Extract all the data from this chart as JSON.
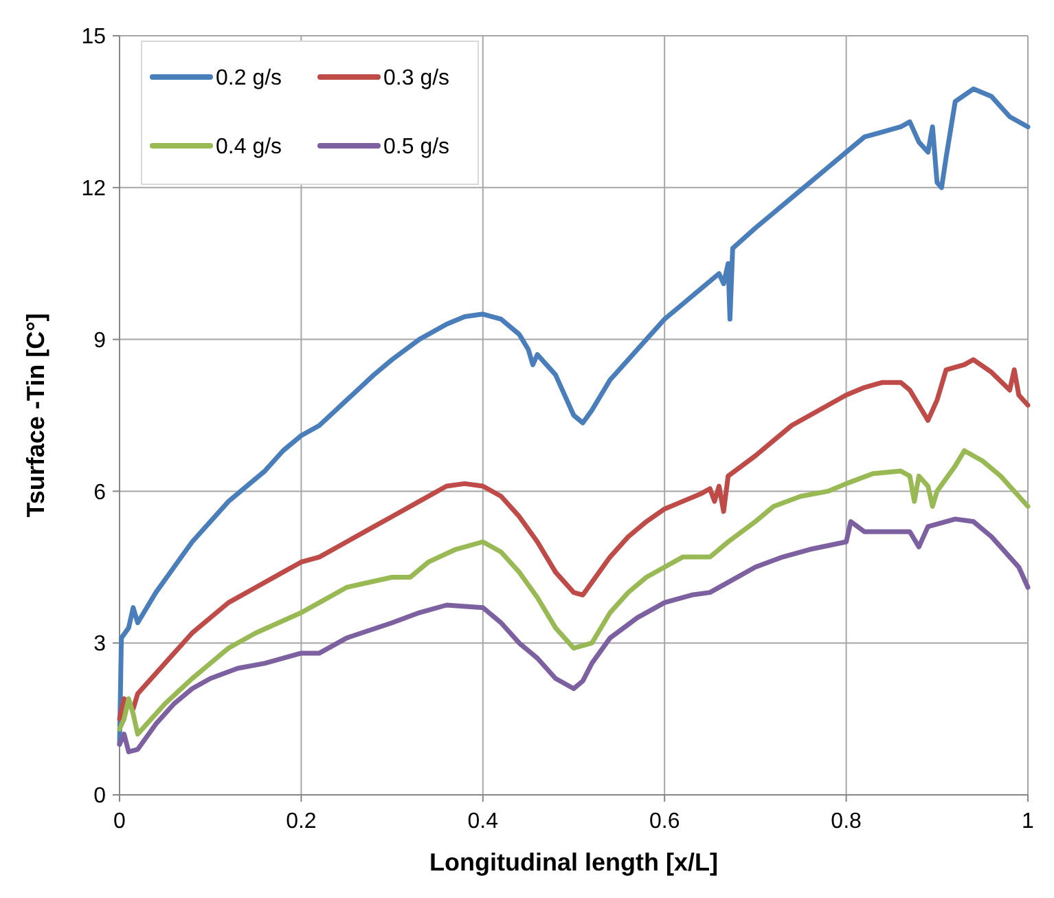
{
  "chart_data": {
    "type": "line",
    "xlabel": "Longitudinal length [x/L]",
    "ylabel": "Tsurface -Tin [C°]",
    "xlim": [
      0,
      1
    ],
    "xticks": [
      0,
      0.2,
      0.4,
      0.6,
      0.8,
      1
    ],
    "ylim": [
      0,
      15
    ],
    "yticks": [
      0,
      3,
      6,
      9,
      12,
      15
    ],
    "grid": true,
    "legend": "top left",
    "marker": "none",
    "line_style": "solid",
    "series": [
      {
        "name": "0.2 g/s",
        "color": "#4a7ebb",
        "x": [
          0,
          0.002,
          0.01,
          0.015,
          0.02,
          0.04,
          0.06,
          0.08,
          0.1,
          0.12,
          0.14,
          0.16,
          0.18,
          0.2,
          0.22,
          0.25,
          0.28,
          0.3,
          0.33,
          0.36,
          0.38,
          0.4,
          0.42,
          0.44,
          0.45,
          0.455,
          0.46,
          0.48,
          0.49,
          0.5,
          0.51,
          0.52,
          0.54,
          0.56,
          0.58,
          0.6,
          0.62,
          0.64,
          0.66,
          0.665,
          0.67,
          0.672,
          0.675,
          0.7,
          0.72,
          0.74,
          0.76,
          0.78,
          0.8,
          0.82,
          0.84,
          0.86,
          0.87,
          0.88,
          0.89,
          0.895,
          0.9,
          0.905,
          0.91,
          0.92,
          0.94,
          0.96,
          0.98,
          1
        ],
        "values": [
          1.0,
          3.1,
          3.3,
          3.7,
          3.4,
          4.0,
          4.5,
          5.0,
          5.4,
          5.8,
          6.1,
          6.4,
          6.8,
          7.1,
          7.3,
          7.8,
          8.3,
          8.6,
          9.0,
          9.3,
          9.45,
          9.5,
          9.4,
          9.1,
          8.8,
          8.5,
          8.7,
          8.3,
          7.9,
          7.5,
          7.35,
          7.6,
          8.2,
          8.6,
          9.0,
          9.4,
          9.7,
          10.0,
          10.3,
          10.1,
          10.5,
          9.4,
          10.8,
          11.2,
          11.5,
          11.8,
          12.1,
          12.4,
          12.7,
          13.0,
          13.1,
          13.2,
          13.3,
          12.9,
          12.7,
          13.2,
          12.1,
          12.0,
          12.6,
          13.7,
          13.95,
          13.8,
          13.4,
          13.2
        ]
      },
      {
        "name": "0.3 g/s",
        "color": "#be4b48",
        "x": [
          0,
          0.005,
          0.01,
          0.015,
          0.02,
          0.04,
          0.06,
          0.08,
          0.1,
          0.12,
          0.15,
          0.18,
          0.2,
          0.22,
          0.25,
          0.28,
          0.3,
          0.33,
          0.36,
          0.38,
          0.4,
          0.42,
          0.44,
          0.46,
          0.48,
          0.5,
          0.51,
          0.52,
          0.54,
          0.56,
          0.58,
          0.6,
          0.62,
          0.64,
          0.65,
          0.655,
          0.66,
          0.665,
          0.67,
          0.7,
          0.72,
          0.74,
          0.76,
          0.78,
          0.8,
          0.82,
          0.84,
          0.86,
          0.87,
          0.88,
          0.89,
          0.9,
          0.91,
          0.93,
          0.94,
          0.96,
          0.98,
          0.985,
          0.99,
          1
        ],
        "values": [
          1.5,
          1.9,
          1.8,
          1.7,
          2.0,
          2.4,
          2.8,
          3.2,
          3.5,
          3.8,
          4.1,
          4.4,
          4.6,
          4.7,
          5.0,
          5.3,
          5.5,
          5.8,
          6.1,
          6.15,
          6.1,
          5.9,
          5.5,
          5.0,
          4.4,
          4.0,
          3.95,
          4.2,
          4.7,
          5.1,
          5.4,
          5.65,
          5.8,
          5.95,
          6.05,
          5.8,
          6.1,
          5.6,
          6.3,
          6.7,
          7.0,
          7.3,
          7.5,
          7.7,
          7.9,
          8.05,
          8.15,
          8.15,
          8.0,
          7.7,
          7.4,
          7.8,
          8.4,
          8.5,
          8.6,
          8.35,
          8.0,
          8.4,
          7.9,
          7.7
        ]
      },
      {
        "name": "0.4 g/s",
        "color": "#98b954",
        "x": [
          0,
          0.005,
          0.01,
          0.015,
          0.02,
          0.03,
          0.05,
          0.08,
          0.1,
          0.12,
          0.15,
          0.2,
          0.22,
          0.25,
          0.3,
          0.32,
          0.34,
          0.37,
          0.4,
          0.42,
          0.44,
          0.46,
          0.48,
          0.5,
          0.52,
          0.54,
          0.56,
          0.58,
          0.6,
          0.62,
          0.65,
          0.67,
          0.7,
          0.72,
          0.75,
          0.78,
          0.8,
          0.83,
          0.86,
          0.87,
          0.875,
          0.88,
          0.89,
          0.895,
          0.9,
          0.92,
          0.93,
          0.95,
          0.97,
          0.99,
          1
        ],
        "values": [
          1.3,
          1.5,
          1.9,
          1.6,
          1.2,
          1.4,
          1.8,
          2.3,
          2.6,
          2.9,
          3.2,
          3.6,
          3.8,
          4.1,
          4.3,
          4.3,
          4.6,
          4.85,
          5.0,
          4.8,
          4.4,
          3.9,
          3.3,
          2.9,
          3.0,
          3.6,
          4.0,
          4.3,
          4.5,
          4.7,
          4.7,
          5.0,
          5.4,
          5.7,
          5.9,
          6.0,
          6.15,
          6.35,
          6.4,
          6.3,
          5.8,
          6.3,
          6.1,
          5.7,
          6.0,
          6.5,
          6.8,
          6.6,
          6.3,
          5.9,
          5.7
        ]
      },
      {
        "name": "0.5 g/s",
        "color": "#7d60a0",
        "x": [
          0,
          0.005,
          0.01,
          0.02,
          0.04,
          0.06,
          0.08,
          0.1,
          0.13,
          0.16,
          0.2,
          0.22,
          0.25,
          0.3,
          0.33,
          0.36,
          0.4,
          0.42,
          0.44,
          0.46,
          0.48,
          0.5,
          0.51,
          0.52,
          0.54,
          0.57,
          0.6,
          0.63,
          0.65,
          0.67,
          0.7,
          0.73,
          0.76,
          0.8,
          0.805,
          0.82,
          0.85,
          0.87,
          0.88,
          0.89,
          0.92,
          0.94,
          0.96,
          0.98,
          0.99,
          1
        ],
        "values": [
          1.0,
          1.2,
          0.85,
          0.9,
          1.4,
          1.8,
          2.1,
          2.3,
          2.5,
          2.6,
          2.8,
          2.8,
          3.1,
          3.4,
          3.6,
          3.75,
          3.7,
          3.4,
          3.0,
          2.7,
          2.3,
          2.1,
          2.25,
          2.6,
          3.1,
          3.5,
          3.8,
          3.95,
          4.0,
          4.2,
          4.5,
          4.7,
          4.85,
          5.0,
          5.4,
          5.2,
          5.2,
          5.2,
          4.9,
          5.3,
          5.45,
          5.4,
          5.1,
          4.7,
          4.5,
          4.1
        ]
      }
    ]
  }
}
